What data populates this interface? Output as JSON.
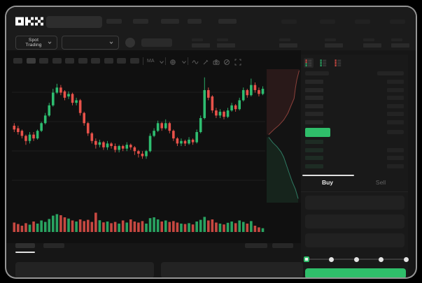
{
  "colors": {
    "green": "#2ebd70",
    "red": "#e8524a",
    "price_highlight_green": "#2fbe6a",
    "buy_button_green": "#2fbe6a",
    "active_indicator_white": "#e0e0e0"
  },
  "header": {
    "logo_label": "OKX"
  },
  "subheader": {
    "market_selector_label": "Spot Trading"
  },
  "toolbar": {
    "ma_label": "MA",
    "timeframe_count": 10,
    "icons": [
      "chevron-down-icon",
      "divider",
      "indicator-icon",
      "chevron-down-icon",
      "divider",
      "wave-icon",
      "brush-icon",
      "camera-icon",
      "disabled-icon",
      "fullscreen-icon"
    ]
  },
  "order_book": {
    "view_modes": [
      "combined-book-icon",
      "bids-book-icon",
      "asks-book-icon"
    ],
    "ask_row_count": 6,
    "bid_row_count": 4
  },
  "trade_panel": {
    "buy_tab_label": "Buy",
    "sell_tab_label": "Sell",
    "slider_percents": [
      0,
      25,
      50,
      75,
      100
    ]
  },
  "chart_data": {
    "type": "candlestick",
    "title": "",
    "note": "mockup chart; axis tick labels are not rendered in the screenshot; values below are relative price units 0-100 read from candle geometry",
    "candles": [
      [
        50,
        52,
        45,
        47
      ],
      [
        48,
        50,
        43,
        45
      ],
      [
        46,
        47,
        40,
        42
      ],
      [
        42,
        43,
        35,
        38
      ],
      [
        38,
        45,
        36,
        43
      ],
      [
        43,
        45,
        38,
        40
      ],
      [
        40,
        47,
        39,
        46
      ],
      [
        46,
        53,
        45,
        52
      ],
      [
        52,
        60,
        51,
        58
      ],
      [
        58,
        68,
        57,
        66
      ],
      [
        66,
        79,
        65,
        76
      ],
      [
        76,
        83,
        75,
        80
      ],
      [
        80,
        82,
        74,
        76
      ],
      [
        77,
        78,
        70,
        72
      ],
      [
        73,
        77,
        71,
        75
      ],
      [
        75,
        76,
        66,
        68
      ],
      [
        68,
        72,
        66,
        70
      ],
      [
        70,
        71,
        58,
        60
      ],
      [
        60,
        61,
        50,
        52
      ],
      [
        52,
        53,
        42,
        44
      ],
      [
        44,
        45,
        36,
        38
      ],
      [
        38,
        40,
        32,
        35
      ],
      [
        35,
        39,
        33,
        37
      ],
      [
        37,
        38,
        31,
        33
      ],
      [
        33,
        38,
        31,
        36
      ],
      [
        36,
        37,
        32,
        34
      ],
      [
        34,
        36,
        29,
        31
      ],
      [
        31,
        35,
        29,
        34
      ],
      [
        34,
        35,
        30,
        32
      ],
      [
        32,
        37,
        30,
        35
      ],
      [
        35,
        36,
        31,
        33
      ],
      [
        33,
        34,
        27,
        30
      ],
      [
        30,
        31,
        25,
        28
      ],
      [
        28,
        30,
        24,
        26
      ],
      [
        26,
        31,
        24,
        30
      ],
      [
        30,
        44,
        29,
        42
      ],
      [
        42,
        48,
        41,
        46
      ],
      [
        46,
        54,
        45,
        52
      ],
      [
        52,
        53,
        46,
        48
      ],
      [
        48,
        55,
        47,
        52
      ],
      [
        52,
        53,
        44,
        46
      ],
      [
        46,
        47,
        38,
        40
      ],
      [
        40,
        41,
        34,
        36
      ],
      [
        36,
        40,
        34,
        38
      ],
      [
        38,
        39,
        34,
        36
      ],
      [
        36,
        41,
        35,
        39
      ],
      [
        39,
        40,
        35,
        37
      ],
      [
        37,
        47,
        36,
        45
      ],
      [
        45,
        58,
        44,
        56
      ],
      [
        56,
        88,
        55,
        78
      ],
      [
        78,
        80,
        70,
        72
      ],
      [
        73,
        74,
        60,
        62
      ],
      [
        62,
        64,
        56,
        58
      ],
      [
        58,
        63,
        56,
        61
      ],
      [
        61,
        62,
        55,
        57
      ],
      [
        57,
        64,
        56,
        62
      ],
      [
        62,
        68,
        61,
        66
      ],
      [
        66,
        67,
        61,
        63
      ],
      [
        63,
        72,
        62,
        70
      ],
      [
        70,
        80,
        69,
        78
      ],
      [
        78,
        79,
        72,
        74
      ],
      [
        74,
        87,
        73,
        82
      ],
      [
        82,
        84,
        76,
        78
      ],
      [
        78,
        80,
        73,
        75
      ],
      [
        75,
        81,
        74,
        79
      ]
    ],
    "volumes": [
      45,
      38,
      30,
      42,
      35,
      50,
      40,
      55,
      48,
      62,
      78,
      85,
      80,
      70,
      64,
      55,
      50,
      60,
      52,
      58,
      48,
      92,
      56,
      46,
      50,
      42,
      48,
      40,
      55,
      45,
      60,
      50,
      45,
      52,
      40,
      66,
      70,
      60,
      50,
      55,
      48,
      52,
      45,
      40,
      38,
      42,
      36,
      50,
      58,
      72,
      55,
      60,
      45,
      40,
      36,
      44,
      50,
      42,
      55,
      48,
      40,
      52,
      30,
      22,
      18
    ],
    "depth": {
      "asks": [
        [
          0.95,
          0.01
        ],
        [
          0.88,
          0.08
        ],
        [
          0.84,
          0.14
        ],
        [
          0.8,
          0.22
        ],
        [
          0.7,
          0.28
        ],
        [
          0.62,
          0.33
        ],
        [
          0.5,
          0.38
        ],
        [
          0.36,
          0.42
        ],
        [
          0.22,
          0.45
        ],
        [
          0.06,
          0.49
        ]
      ],
      "bids": [
        [
          0.06,
          0.51
        ],
        [
          0.18,
          0.55
        ],
        [
          0.3,
          0.58
        ],
        [
          0.42,
          0.62
        ],
        [
          0.5,
          0.66
        ],
        [
          0.58,
          0.72
        ],
        [
          0.66,
          0.78
        ],
        [
          0.74,
          0.84
        ],
        [
          0.84,
          0.9
        ],
        [
          0.92,
          0.97
        ]
      ]
    }
  }
}
